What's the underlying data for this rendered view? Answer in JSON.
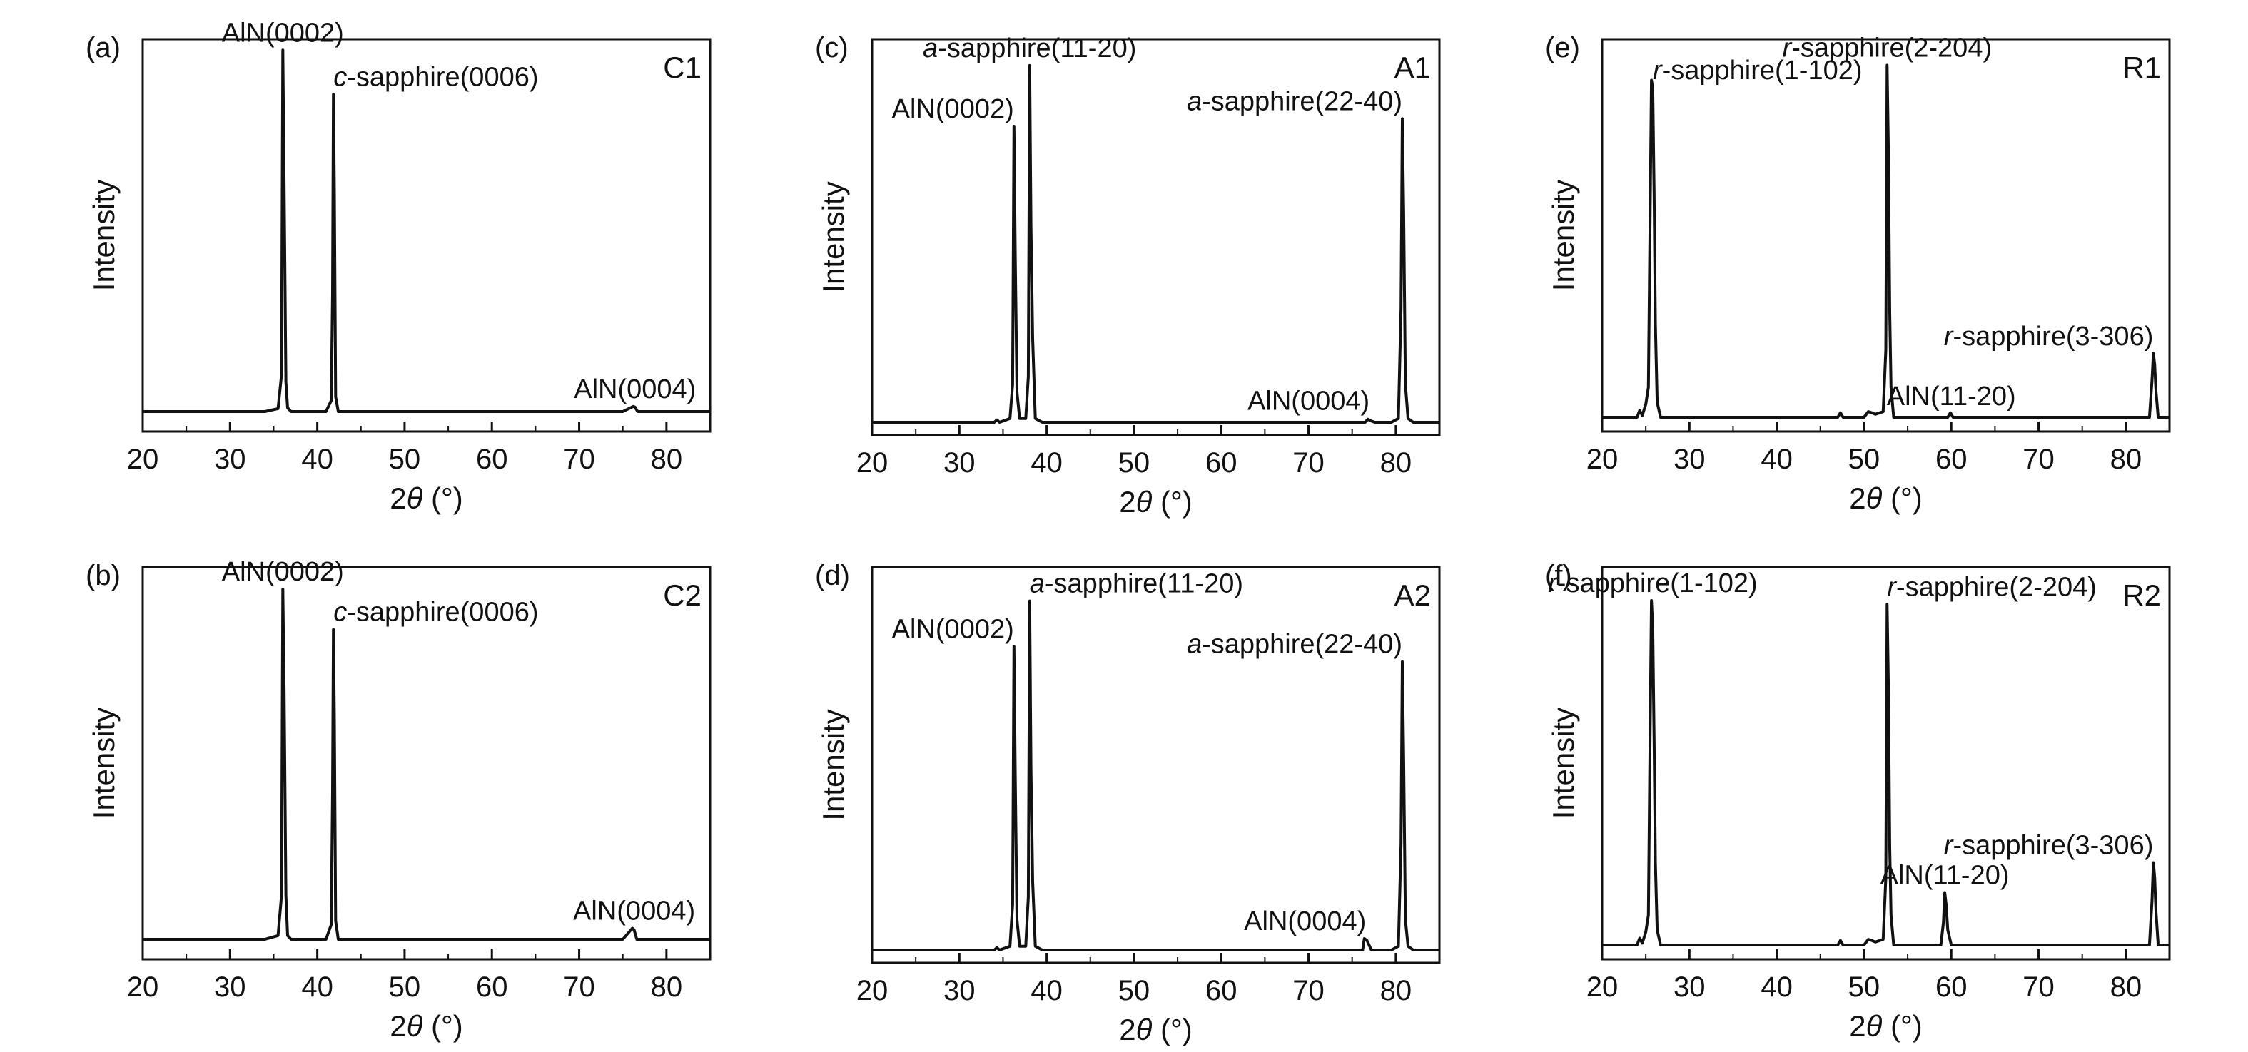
{
  "figure": {
    "colors": {
      "line": "#111111",
      "axes": "#111111",
      "background": "#ffffff"
    }
  },
  "chart_data": [
    {
      "type": "line",
      "panel_label": "(a)",
      "sample": "C1",
      "xlabel_prefix": "2",
      "xlabel_theta": "θ",
      "xlabel_suffix": " (°)",
      "ylabel": "Intensity",
      "xlim": [
        20,
        85
      ],
      "ylim": [
        0,
        100
      ],
      "xticks": [
        20,
        30,
        40,
        50,
        60,
        70,
        80
      ],
      "grid": false,
      "series": [
        {
          "x": [
            20,
            34,
            35.5,
            35.9,
            36.05,
            36.2,
            36.4,
            36.6,
            37,
            41,
            41.6,
            41.75,
            41.85,
            41.95,
            42.1,
            42.4,
            50,
            75,
            76.2,
            76.4,
            76.7,
            85
          ],
          "y": [
            0,
            0,
            0.8,
            10,
            98,
            62,
            8,
            1,
            0,
            0,
            3,
            32,
            86,
            60,
            4,
            0,
            0,
            0,
            1.4,
            1.2,
            0,
            0
          ]
        }
      ],
      "annotations": [
        {
          "x": 36.05,
          "y": 98,
          "prefix": "",
          "italic": "",
          "text": "AlN(0002)",
          "anchor": "middle"
        },
        {
          "x": 41.85,
          "y": 86,
          "prefix": "",
          "italic": "c",
          "text": "-sapphire(0006)",
          "anchor": "start"
        },
        {
          "x": 76.4,
          "y": 1.4,
          "prefix": "",
          "italic": "",
          "text": "AlN(0004)",
          "anchor": "middle"
        }
      ]
    },
    {
      "type": "line",
      "panel_label": "(b)",
      "sample": "C2",
      "xlabel_prefix": "2",
      "xlabel_theta": "θ",
      "xlabel_suffix": " (°)",
      "ylabel": "Intensity",
      "xlim": [
        20,
        85
      ],
      "ylim": [
        0,
        100
      ],
      "xticks": [
        20,
        30,
        40,
        50,
        60,
        70,
        80
      ],
      "grid": false,
      "series": [
        {
          "x": [
            20,
            34,
            35.5,
            35.9,
            36.05,
            36.2,
            36.4,
            36.6,
            37,
            41,
            41.6,
            41.75,
            41.85,
            41.95,
            42.1,
            42.4,
            50,
            75,
            76.1,
            76.3,
            76.6,
            85
          ],
          "y": [
            0,
            0,
            1,
            12,
            95,
            68,
            12,
            1,
            0,
            0,
            4,
            40,
            84,
            60,
            5,
            0,
            0,
            0,
            3,
            2.5,
            0,
            0
          ]
        }
      ],
      "annotations": [
        {
          "x": 36.05,
          "y": 95,
          "prefix": "",
          "italic": "",
          "text": "AlN(0002)",
          "anchor": "middle"
        },
        {
          "x": 41.85,
          "y": 84,
          "prefix": "",
          "italic": "c",
          "text": "-sapphire(0006)",
          "anchor": "start"
        },
        {
          "x": 76.3,
          "y": 3,
          "prefix": "",
          "italic": "",
          "text": "AlN(0004)",
          "anchor": "middle"
        }
      ]
    },
    {
      "type": "line",
      "panel_label": "(c)",
      "sample": "A1",
      "xlabel_prefix": "2",
      "xlabel_theta": "θ",
      "xlabel_suffix": " (°)",
      "ylabel": "Intensity",
      "xlim": [
        20,
        85
      ],
      "ylim": [
        0,
        100
      ],
      "xticks": [
        20,
        30,
        40,
        50,
        60,
        70,
        80
      ],
      "grid": false,
      "series": [
        {
          "x": [
            20,
            34,
            34.3,
            34.6,
            35.8,
            36.1,
            36.25,
            36.4,
            36.6,
            36.9,
            37.6,
            37.9,
            38.05,
            38.2,
            38.4,
            38.7,
            39.5,
            60,
            76.5,
            76.8,
            77.1,
            77.6,
            79.5,
            80.3,
            80.6,
            80.75,
            80.9,
            81.1,
            81.4,
            82,
            85
          ],
          "y": [
            0,
            0,
            0.6,
            0,
            1,
            10,
            78,
            44,
            8,
            1,
            1,
            12,
            94,
            52,
            22,
            1,
            0,
            0,
            0,
            0.8,
            0.4,
            0,
            0,
            1,
            30,
            80,
            55,
            10,
            1,
            0,
            0
          ]
        }
      ],
      "annotations": [
        {
          "x": 36.25,
          "y": 78,
          "prefix": "",
          "italic": "",
          "text": "AlN(0002)",
          "anchor": "end"
        },
        {
          "x": 38.05,
          "y": 94,
          "prefix": "",
          "italic": "a",
          "text": "-sapphire(11-20)",
          "anchor": "middle"
        },
        {
          "x": 80.75,
          "y": 80,
          "prefix": "",
          "italic": "a",
          "text": "-sapphire(22-40)",
          "anchor": "end"
        },
        {
          "x": 77,
          "y": 1,
          "prefix": "",
          "italic": "",
          "text": "AlN(0004)",
          "anchor": "end"
        }
      ]
    },
    {
      "type": "line",
      "panel_label": "(d)",
      "sample": "A2",
      "xlabel_prefix": "2",
      "xlabel_theta": "θ",
      "xlabel_suffix": " (°)",
      "ylabel": "Intensity",
      "xlim": [
        20,
        85
      ],
      "ylim": [
        0,
        100
      ],
      "xticks": [
        20,
        30,
        40,
        50,
        60,
        70,
        80
      ],
      "grid": false,
      "series": [
        {
          "x": [
            20,
            34,
            34.3,
            34.6,
            35.8,
            36.1,
            36.25,
            36.4,
            36.6,
            36.9,
            37.6,
            37.9,
            38.05,
            38.2,
            38.4,
            38.7,
            39.5,
            60,
            76.2,
            76.4,
            76.7,
            77.2,
            79.5,
            80.3,
            80.6,
            80.75,
            80.9,
            81.1,
            81.4,
            82,
            85
          ],
          "y": [
            0,
            0,
            0.6,
            0,
            1,
            12,
            80,
            46,
            8,
            1,
            1,
            14,
            92,
            48,
            18,
            1,
            0,
            0,
            0,
            3,
            2.5,
            0,
            0,
            1,
            28,
            76,
            50,
            8,
            1,
            0,
            0
          ]
        }
      ],
      "annotations": [
        {
          "x": 36.25,
          "y": 80,
          "prefix": "",
          "italic": "",
          "text": "AlN(0002)",
          "anchor": "end"
        },
        {
          "x": 38.05,
          "y": 92,
          "prefix": "",
          "italic": "a",
          "text": "-sapphire(11-20)",
          "anchor": "start"
        },
        {
          "x": 80.75,
          "y": 76,
          "prefix": "",
          "italic": "a",
          "text": "-sapphire(22-40)",
          "anchor": "end"
        },
        {
          "x": 76.6,
          "y": 3,
          "prefix": "",
          "italic": "",
          "text": "AlN(0004)",
          "anchor": "end"
        }
      ]
    },
    {
      "type": "line",
      "panel_label": "(e)",
      "sample": "R1",
      "xlabel_prefix": "2",
      "xlabel_theta": "θ",
      "xlabel_suffix": " (°)",
      "ylabel": "Intensity",
      "xlim": [
        20,
        85
      ],
      "ylim": [
        0,
        100
      ],
      "xticks": [
        20,
        30,
        40,
        50,
        60,
        70,
        80
      ],
      "grid": false,
      "series": [
        {
          "x": [
            20,
            24,
            24.3,
            24.6,
            25,
            25.3,
            25.5,
            25.65,
            25.8,
            25.95,
            26.1,
            26.3,
            26.7,
            30,
            47,
            47.3,
            47.6,
            50,
            50.5,
            50.9,
            51.3,
            52.2,
            52.5,
            52.65,
            52.8,
            52.95,
            53.1,
            53.4,
            59.6,
            59.9,
            60.2,
            70,
            82.7,
            83,
            83.15,
            83.3,
            83.45,
            83.7,
            85
          ],
          "y": [
            0,
            0,
            1.8,
            0.5,
            3.5,
            8,
            55,
            90,
            88,
            60,
            25,
            4,
            0,
            0,
            0,
            1.2,
            0,
            0,
            1.5,
            1.2,
            0.8,
            1.5,
            18,
            94,
            70,
            28,
            8,
            0,
            0,
            1.2,
            0,
            0,
            0,
            10,
            17,
            14,
            7,
            0,
            0
          ]
        }
      ],
      "annotations": [
        {
          "x": 25.8,
          "y": 88,
          "prefix": "",
          "italic": "r",
          "text": "-sapphire(1-102)",
          "anchor": "start"
        },
        {
          "x": 52.65,
          "y": 94,
          "prefix": "",
          "italic": "r",
          "text": "-sapphire(2-204)",
          "anchor": "middle"
        },
        {
          "x": 83.15,
          "y": 17,
          "prefix": "",
          "italic": "r",
          "text": "-sapphire(3-306)",
          "anchor": "end"
        },
        {
          "x": 60,
          "y": 1,
          "prefix": "",
          "italic": "",
          "text": "AlN(11-20)",
          "anchor": "middle"
        }
      ]
    },
    {
      "type": "line",
      "panel_label": "(f)",
      "sample": "R2",
      "xlabel_prefix": "2",
      "xlabel_theta": "θ",
      "xlabel_suffix": " (°)",
      "ylabel": "Intensity",
      "xlim": [
        20,
        85
      ],
      "ylim": [
        0,
        100
      ],
      "xticks": [
        20,
        30,
        40,
        50,
        60,
        70,
        80
      ],
      "grid": false,
      "series": [
        {
          "x": [
            20,
            24,
            24.3,
            24.6,
            25,
            25.3,
            25.5,
            25.65,
            25.8,
            25.95,
            26.1,
            26.3,
            26.7,
            30,
            47,
            47.3,
            47.6,
            50,
            50.5,
            50.9,
            51.3,
            52.2,
            52.5,
            52.65,
            52.8,
            52.95,
            53.1,
            53.4,
            58.8,
            59.1,
            59.25,
            59.4,
            59.6,
            60,
            70,
            82.7,
            83,
            83.15,
            83.3,
            83.45,
            83.7,
            85
          ],
          "y": [
            0,
            0,
            1.8,
            0.5,
            3.5,
            8,
            58,
            92,
            85,
            55,
            22,
            4,
            0,
            0,
            0,
            1.2,
            0,
            0,
            1.5,
            1.2,
            0.8,
            1.5,
            18,
            91,
            68,
            26,
            8,
            0,
            0,
            6,
            14,
            11,
            4,
            0,
            0,
            0,
            12,
            22,
            18,
            9,
            0,
            0
          ]
        }
      ],
      "annotations": [
        {
          "x": 25.8,
          "y": 92,
          "prefix": "",
          "italic": "r",
          "text": "-sapphire(1-102)",
          "anchor": "middle"
        },
        {
          "x": 52.65,
          "y": 91,
          "prefix": "",
          "italic": "r",
          "text": "-sapphire(2-204)",
          "anchor": "start"
        },
        {
          "x": 83.15,
          "y": 22,
          "prefix": "",
          "italic": "r",
          "text": "-sapphire(3-306)",
          "anchor": "end"
        },
        {
          "x": 59.25,
          "y": 14,
          "prefix": "",
          "italic": "",
          "text": "AlN(11-20)",
          "anchor": "middle"
        }
      ]
    }
  ]
}
